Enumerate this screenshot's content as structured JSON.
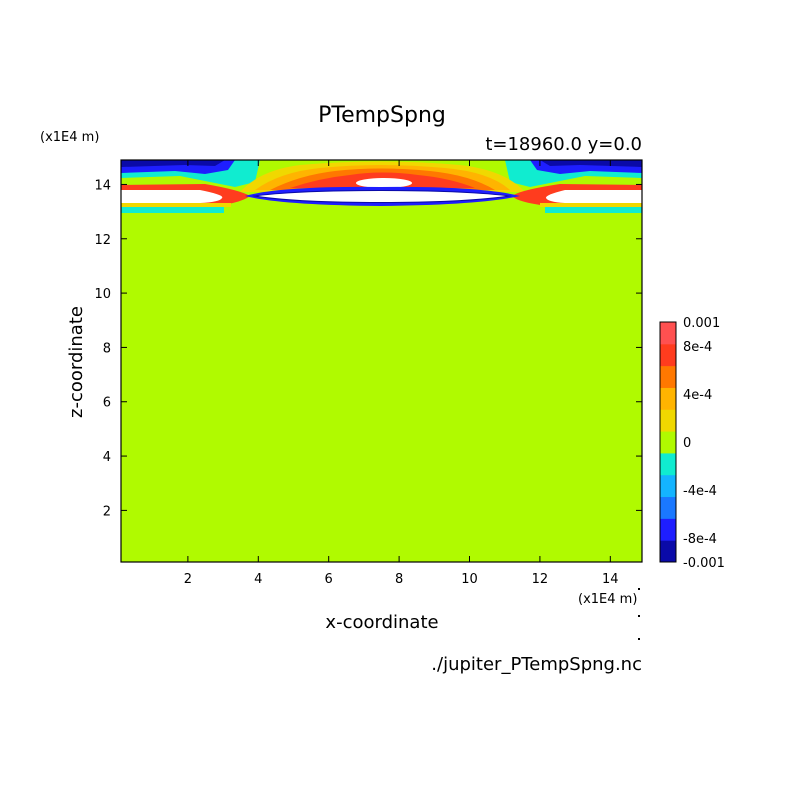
{
  "chart_data": {
    "type": "heatmap",
    "title": "PTempSpng",
    "subtitle": "t=18960.0 y=0.0",
    "xlabel": "x-coordinate",
    "ylabel": "z-coordinate",
    "x_unit": "(x1E4 m)",
    "z_unit": "(x1E4 m)",
    "source_file": "./jupiter_PTempSpng.nc",
    "xlim": [
      0.1,
      14.9
    ],
    "ylim": [
      0.1,
      14.9
    ],
    "x_ticks": [
      2,
      4,
      6,
      8,
      10,
      12,
      14
    ],
    "y_ticks": [
      2,
      4,
      6,
      8,
      10,
      12,
      14
    ],
    "colorbar": {
      "levels": [
        -0.001,
        -0.0008,
        -0.0006,
        -0.0004,
        -0.0002,
        0,
        0.0002,
        0.0004,
        0.0006,
        0.0008,
        0.001
      ],
      "colors": [
        "#0a0aa8",
        "#1e1eff",
        "#1a78ff",
        "#14b4ff",
        "#10ecd0",
        "#b0fa00",
        "#f0d800",
        "#ffb400",
        "#ff7800",
        "#ff3c1e",
        "#ff5050"
      ],
      "tick_labels": [
        "0.001",
        "8e-4",
        "4e-4",
        "0",
        "-4e-4",
        "-8e-4",
        "-0.001"
      ]
    },
    "background_value": 0,
    "features": [
      {
        "x": [
          3.0,
          12.0
        ],
        "z": [
          14.0,
          15.0
        ],
        "value": 0.0008
      },
      {
        "x": [
          6.5,
          9.0
        ],
        "z": [
          14.1,
          14.4
        ],
        "value": 0.0012
      },
      {
        "x": [
          0.1,
          3.0
        ],
        "z": [
          14.2,
          15.0
        ],
        "value": -0.0006
      },
      {
        "x": [
          12.0,
          14.9
        ],
        "z": [
          14.2,
          15.0
        ],
        "value": -0.0006
      },
      {
        "x": [
          0.1,
          3.0
        ],
        "z": [
          13.3,
          13.8
        ],
        "value": 0.0015
      },
      {
        "x": [
          12.0,
          14.9
        ],
        "z": [
          13.3,
          13.8
        ],
        "value": 0.0015
      },
      {
        "x": [
          3.5,
          11.5
        ],
        "z": [
          13.4,
          13.8
        ],
        "value": -0.0015
      }
    ]
  }
}
